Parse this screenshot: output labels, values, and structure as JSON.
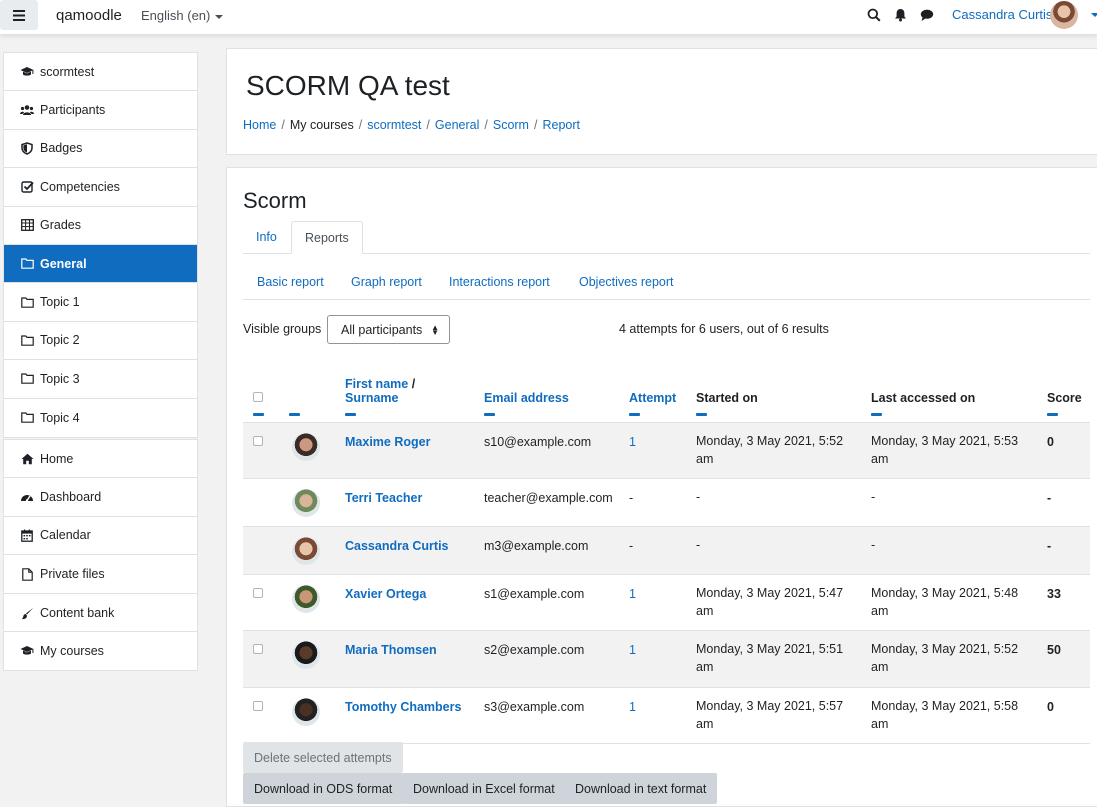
{
  "navbar": {
    "brand": "qamoodle",
    "language": "English (en)",
    "user_name": "Cassandra Curtis",
    "icons": [
      "menu-icon",
      "search-icon",
      "bell-icon",
      "chat-icon"
    ]
  },
  "drawer": {
    "course_items": [
      {
        "label": "scormtest",
        "icon": "graduation-cap-icon"
      },
      {
        "label": "Participants",
        "icon": "users-icon"
      },
      {
        "label": "Badges",
        "icon": "shield-icon"
      },
      {
        "label": "Competencies",
        "icon": "checkbox-icon"
      },
      {
        "label": "Grades",
        "icon": "table-icon"
      },
      {
        "label": "General",
        "icon": "folder-icon",
        "active": true
      },
      {
        "label": "Topic 1",
        "icon": "folder-icon"
      },
      {
        "label": "Topic 2",
        "icon": "folder-icon"
      },
      {
        "label": "Topic 3",
        "icon": "folder-icon"
      },
      {
        "label": "Topic 4",
        "icon": "folder-icon"
      }
    ],
    "site_items": [
      {
        "label": "Home",
        "icon": "home-icon"
      },
      {
        "label": "Dashboard",
        "icon": "dashboard-icon"
      },
      {
        "label": "Calendar",
        "icon": "calendar-icon"
      },
      {
        "label": "Private files",
        "icon": "file-icon"
      }
    ],
    "bank_items": [
      {
        "label": "Content bank",
        "icon": "paintbrush-icon"
      }
    ],
    "my_items": [
      {
        "label": "My courses",
        "icon": "graduation-cap-icon"
      }
    ]
  },
  "header": {
    "title": "SCORM QA test",
    "breadcrumb": [
      "Home",
      "My courses",
      "scormtest",
      "General",
      "Scorm",
      "Report"
    ]
  },
  "main": {
    "title": "Scorm",
    "tabs": [
      "Info",
      "Reports"
    ],
    "active_tab": "Reports",
    "subtabs": [
      "Basic report",
      "Graph report",
      "Interactions report",
      "Objectives report"
    ],
    "groups_label": "Visible groups",
    "groups_value": "All participants",
    "summary": "4 attempts for 6 users, out of 6 results"
  },
  "table": {
    "headers": {
      "firstname": "First name",
      "surname": "Surname",
      "email": "Email address",
      "attempt": "Attempt",
      "started": "Started on",
      "accessed": "Last accessed on",
      "score": "Score"
    },
    "rows": [
      {
        "name": "Maxime Roger",
        "email": "s10@example.com",
        "attempt": "1",
        "started": "Monday, 3 May 2021, 5:52 am",
        "accessed": "Monday, 3 May 2021, 5:53 am",
        "score": "0",
        "checkbox": true,
        "avatar": [
          "#3b2a25",
          "#c99a80"
        ]
      },
      {
        "name": "Terri Teacher",
        "email": "teacher@example.com",
        "attempt": "-",
        "started": "-",
        "accessed": "-",
        "score": "-",
        "checkbox": false,
        "avatar": [
          "#6f8a5a",
          "#d9b499"
        ]
      },
      {
        "name": "Cassandra Curtis",
        "email": "m3@example.com",
        "attempt": "-",
        "started": "-",
        "accessed": "-",
        "score": "-",
        "checkbox": false,
        "avatar": [
          "#7b4a34",
          "#e8c4a8"
        ]
      },
      {
        "name": "Xavier Ortega",
        "email": "s1@example.com",
        "attempt": "1",
        "started": "Monday, 3 May 2021, 5:47 am",
        "accessed": "Monday, 3 May 2021, 5:48 am",
        "score": "33",
        "checkbox": true,
        "avatar": [
          "#3d5a2a",
          "#c9967a"
        ]
      },
      {
        "name": "Maria Thomsen",
        "email": "s2@example.com",
        "attempt": "1",
        "started": "Monday, 3 May 2021, 5:51 am",
        "accessed": "Monday, 3 May 2021, 5:52 am",
        "score": "50",
        "checkbox": true,
        "avatar": [
          "#1a1a1a",
          "#5a3a28"
        ]
      },
      {
        "name": "Tomothy Chambers",
        "email": "s3@example.com",
        "attempt": "1",
        "started": "Monday, 3 May 2021, 5:57 am",
        "accessed": "Monday, 3 May 2021, 5:58 am",
        "score": "0",
        "checkbox": true,
        "avatar": [
          "#222222",
          "#4a3024"
        ]
      }
    ]
  },
  "buttons": {
    "delete": "Delete selected attempts",
    "download_ods": "Download in ODS format",
    "download_excel": "Download in Excel format",
    "download_text": "Download in text format"
  },
  "colors": {
    "accent": "#0f6cbf",
    "text": "#1d2125",
    "background": "#f2f2f2"
  }
}
